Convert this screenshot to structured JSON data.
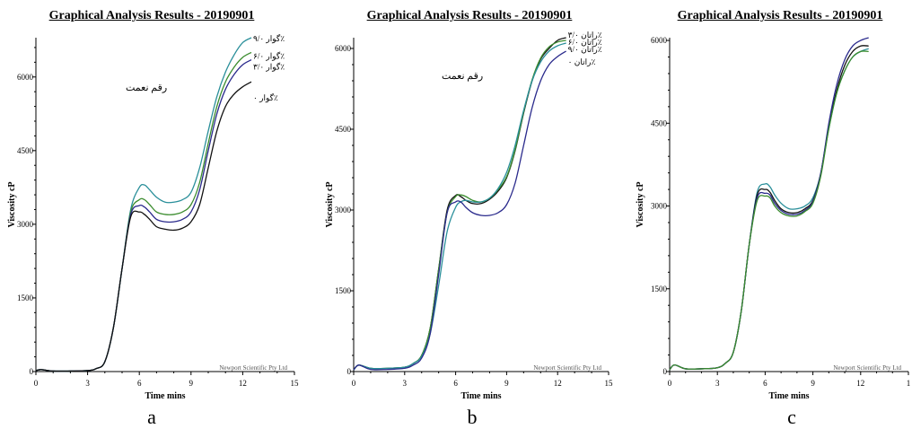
{
  "panels": [
    {
      "title": "Graphical Analysis Results - 20190901",
      "label": "a",
      "chart_data": {
        "type": "line",
        "xlabel": "Time mins",
        "ylabel": "Viscosity cP",
        "xlim": [
          0,
          15
        ],
        "ylim": [
          0,
          6800
        ],
        "xticks": [
          "0",
          "3",
          "6",
          "9",
          "12",
          "15"
        ],
        "yticks": [
          "0",
          "1500",
          "3000",
          "4500",
          "6000"
        ],
        "annotation": "رقم نعمت",
        "watermark": "Newport Scientific Pty Ltd",
        "series": [
          {
            "name": "گوار ۹/۰٪",
            "color": "#2a8f9a",
            "x": [
              0,
              0.3,
              1,
              2,
              3,
              3.5,
              4,
              4.5,
              5,
              5.5,
              6,
              6.3,
              6.6,
              7,
              7.5,
              8,
              8.5,
              9,
              9.5,
              10,
              10.5,
              11,
              11.5,
              12,
              12.5
            ],
            "y": [
              20,
              40,
              10,
              10,
              20,
              60,
              200,
              900,
              2100,
              3300,
              3750,
              3800,
              3700,
              3550,
              3450,
              3450,
              3500,
              3650,
              4150,
              4900,
              5600,
              6100,
              6450,
              6700,
              6800
            ]
          },
          {
            "name": "گوار ۶/۰٪",
            "color": "#3b8c2e",
            "x": [
              0,
              0.3,
              1,
              2,
              3,
              3.5,
              4,
              4.5,
              5,
              5.5,
              6,
              6.3,
              6.6,
              7,
              7.5,
              8,
              8.5,
              9,
              9.5,
              10,
              10.5,
              11,
              11.5,
              12,
              12.5
            ],
            "y": [
              20,
              40,
              10,
              10,
              20,
              60,
              200,
              900,
              2100,
              3250,
              3500,
              3500,
              3400,
              3250,
              3200,
              3200,
              3250,
              3400,
              3850,
              4650,
              5400,
              5900,
              6200,
              6400,
              6500
            ]
          },
          {
            "name": "گوار ۳/۰٪",
            "color": "#2a2a8c",
            "x": [
              0,
              0.3,
              1,
              2,
              3,
              3.5,
              4,
              4.5,
              5,
              5.5,
              6,
              6.3,
              6.6,
              7,
              7.5,
              8,
              8.5,
              9,
              9.5,
              10,
              10.5,
              11,
              11.5,
              12,
              12.5
            ],
            "y": [
              20,
              40,
              10,
              10,
              20,
              60,
              200,
              900,
              2100,
              3200,
              3380,
              3350,
              3250,
              3100,
              3050,
              3050,
              3100,
              3250,
              3700,
              4500,
              5250,
              5750,
              6050,
              6250,
              6350
            ]
          },
          {
            "name": "گوار ۰٪",
            "color": "#111111",
            "x": [
              0,
              0.3,
              1,
              2,
              3,
              3.5,
              4,
              4.5,
              5,
              5.5,
              6,
              6.3,
              6.6,
              7,
              7.5,
              8,
              8.5,
              9,
              9.5,
              10,
              10.5,
              11,
              11.5,
              12,
              12.5
            ],
            "y": [
              20,
              40,
              10,
              10,
              20,
              60,
              200,
              900,
              2100,
              3150,
              3250,
              3200,
              3100,
              2950,
              2900,
              2880,
              2920,
              3050,
              3400,
              4150,
              4900,
              5400,
              5650,
              5800,
              5900
            ]
          }
        ]
      }
    },
    {
      "title": "Graphical Analysis Results - 20190901",
      "label": "b",
      "chart_data": {
        "type": "line",
        "xlabel": "Time mins",
        "ylabel": "Viscosity cP",
        "xlim": [
          0,
          15
        ],
        "ylim": [
          0,
          6200
        ],
        "xticks": [
          "0",
          "3",
          "6",
          "9",
          "12",
          "15"
        ],
        "yticks": [
          "0",
          "1500",
          "3000",
          "4500",
          "6000"
        ],
        "annotation": "رقم نعمت",
        "watermark": "Newport Scientific Pty Ltd",
        "series": [
          {
            "name": "راتان ۳/۰٪",
            "color": "#111111",
            "x": [
              0,
              0.3,
              1,
              2,
              3,
              3.5,
              4,
              4.5,
              5,
              5.5,
              6,
              6.3,
              6.6,
              7,
              7.5,
              8,
              8.5,
              9,
              9.5,
              10,
              10.5,
              11,
              11.5,
              12,
              12.5
            ],
            "y": [
              30,
              120,
              60,
              60,
              80,
              150,
              300,
              800,
              1900,
              3000,
              3270,
              3250,
              3180,
              3120,
              3120,
              3200,
              3350,
              3600,
              4100,
              4800,
              5400,
              5800,
              6000,
              6150,
              6200
            ]
          },
          {
            "name": "راتان ۶/۰٪",
            "color": "#3b8c2e",
            "x": [
              0,
              0.3,
              1,
              2,
              3,
              3.5,
              4,
              4.5,
              5,
              5.5,
              6,
              6.3,
              6.6,
              7,
              7.5,
              8,
              8.5,
              9,
              9.5,
              10,
              10.5,
              11,
              11.5,
              12,
              12.5
            ],
            "y": [
              30,
              120,
              60,
              60,
              80,
              150,
              300,
              800,
              1900,
              2950,
              3250,
              3280,
              3250,
              3180,
              3150,
              3220,
              3380,
              3620,
              4120,
              4820,
              5420,
              5820,
              6030,
              6120,
              6150
            ]
          },
          {
            "name": "راتان ۹/۰٪",
            "color": "#2a8f9a",
            "x": [
              0,
              0.3,
              1,
              2,
              3,
              3.5,
              4,
              4.5,
              5,
              5.5,
              6,
              6.3,
              6.6,
              7,
              7.5,
              8,
              8.5,
              9,
              9.5,
              10,
              10.5,
              11,
              11.5,
              12,
              12.5
            ],
            "y": [
              30,
              120,
              60,
              60,
              80,
              150,
              280,
              700,
              1600,
              2600,
              3050,
              3150,
              3180,
              3150,
              3150,
              3220,
              3400,
              3700,
              4200,
              4850,
              5400,
              5750,
              5950,
              6050,
              6100
            ]
          },
          {
            "name": "راتان ۰٪",
            "color": "#2a2a8c",
            "x": [
              0,
              0.3,
              1,
              2,
              3,
              3.5,
              4,
              4.5,
              5,
              5.5,
              6,
              6.3,
              6.6,
              7,
              7.5,
              8,
              8.5,
              9,
              9.5,
              10,
              10.5,
              11,
              11.5,
              12,
              12.5
            ],
            "y": [
              30,
              120,
              40,
              40,
              60,
              120,
              250,
              700,
              1800,
              2950,
              3150,
              3150,
              3050,
              2950,
              2900,
              2900,
              2950,
              3100,
              3500,
              4200,
              4900,
              5400,
              5700,
              5850,
              5950
            ]
          }
        ]
      }
    },
    {
      "title": "Graphical Analysis Results - 20190901",
      "label": "c",
      "chart_data": {
        "type": "line",
        "xlabel": "Time mins",
        "ylabel": "Viscosity cP",
        "xlim": [
          0,
          15
        ],
        "ylim": [
          0,
          6050
        ],
        "xticks": [
          "0",
          "3",
          "6",
          "9",
          "12",
          "1"
        ],
        "yticks": [
          "0",
          "1500",
          "3000",
          "4500",
          "6000"
        ],
        "annotation": "",
        "watermark": "Newport Scientific Pty Ltd",
        "series": [
          {
            "color": "#2a8f9a",
            "x": [
              0,
              0.3,
              1,
              2,
              3,
              3.5,
              4,
              4.5,
              5,
              5.5,
              6,
              6.3,
              6.6,
              7,
              7.5,
              8,
              8.5,
              9,
              9.5,
              10,
              10.5,
              11,
              11.5,
              12,
              12.5
            ],
            "y": [
              30,
              120,
              50,
              50,
              70,
              150,
              350,
              1100,
              2300,
              3250,
              3400,
              3350,
              3200,
              3050,
              2950,
              2950,
              3000,
              3150,
              3600,
              4400,
              5050,
              5450,
              5700,
              5800,
              5850
            ]
          },
          {
            "color": "#111111",
            "x": [
              0,
              0.3,
              1,
              2,
              3,
              3.5,
              4,
              4.5,
              5,
              5.5,
              6,
              6.3,
              6.6,
              7,
              7.5,
              8,
              8.5,
              9,
              9.5,
              10,
              10.5,
              11,
              11.5,
              12,
              12.5
            ],
            "y": [
              30,
              120,
              50,
              50,
              70,
              150,
              350,
              1100,
              2300,
              3200,
              3300,
              3250,
              3100,
              2950,
              2880,
              2880,
              2950,
              3100,
              3600,
              4450,
              5100,
              5550,
              5800,
              5900,
              5900
            ]
          },
          {
            "color": "#2a2a8c",
            "x": [
              0,
              0.3,
              1,
              2,
              3,
              3.5,
              4,
              4.5,
              5,
              5.5,
              6,
              6.3,
              6.6,
              7,
              7.5,
              8,
              8.5,
              9,
              9.5,
              10,
              10.5,
              11,
              11.5,
              12,
              12.5
            ],
            "y": [
              30,
              120,
              50,
              50,
              70,
              150,
              350,
              1100,
              2300,
              3150,
              3230,
              3200,
              3050,
              2920,
              2850,
              2850,
              2920,
              3080,
              3600,
              4500,
              5200,
              5650,
              5900,
              6000,
              6050
            ]
          },
          {
            "color": "#3b8c2e",
            "x": [
              0,
              0.3,
              1,
              2,
              3,
              3.5,
              4,
              4.5,
              5,
              5.5,
              6,
              6.3,
              6.6,
              7,
              7.5,
              8,
              8.5,
              9,
              9.5,
              10,
              10.5,
              11,
              11.5,
              12,
              12.5
            ],
            "y": [
              30,
              120,
              50,
              50,
              70,
              150,
              350,
              1100,
              2300,
              3100,
              3180,
              3150,
              3000,
              2880,
              2820,
              2820,
              2900,
              3050,
              3550,
              4400,
              5050,
              5450,
              5700,
              5800,
              5800
            ]
          }
        ]
      }
    }
  ]
}
